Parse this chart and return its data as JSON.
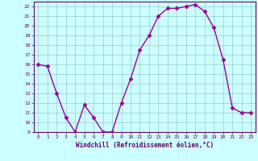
{
  "x": [
    0,
    1,
    2,
    3,
    4,
    5,
    6,
    7,
    8,
    9,
    10,
    11,
    12,
    13,
    14,
    15,
    16,
    17,
    18,
    19,
    20,
    21,
    22,
    23
  ],
  "y": [
    16,
    15.8,
    13,
    10.5,
    9,
    11.8,
    10.5,
    9,
    9,
    12,
    14.5,
    17.5,
    19,
    21,
    21.8,
    21.8,
    22,
    22.2,
    21.5,
    19.8,
    16.5,
    11.5,
    11,
    11
  ],
  "line_color": "#990099",
  "marker": "D",
  "bg_color": "#ccffff",
  "grid_color": "#99cccc",
  "xlabel": "Windchill (Refroidissement éolien,°C)",
  "ylim": [
    9,
    22.5
  ],
  "xlim": [
    -0.5,
    23.5
  ],
  "yticks": [
    9,
    10,
    11,
    12,
    13,
    14,
    15,
    16,
    17,
    18,
    19,
    20,
    21,
    22
  ],
  "xticks": [
    0,
    1,
    2,
    3,
    4,
    5,
    6,
    7,
    8,
    9,
    10,
    11,
    12,
    13,
    14,
    15,
    16,
    17,
    18,
    19,
    20,
    21,
    22,
    23
  ],
  "spine_color": "#660066",
  "tick_color": "#660066",
  "label_color": "#660066"
}
